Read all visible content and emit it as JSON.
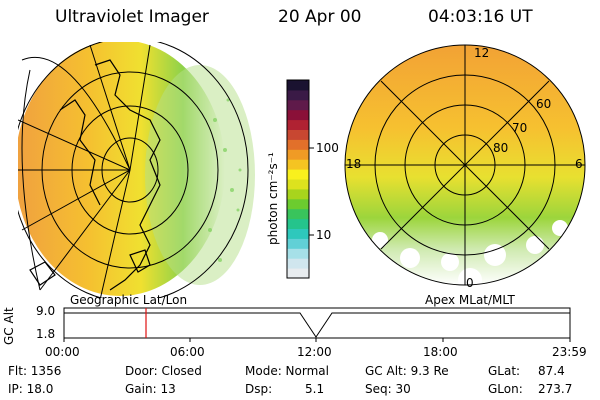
{
  "header": {
    "title": "Ultraviolet Imager",
    "date": "20 Apr 00",
    "time": "04:03:16 UT"
  },
  "colorbar": {
    "label": "photon cm⁻²s⁻¹",
    "ticks": [
      "100",
      "10"
    ],
    "colors": [
      "#e8ecef",
      "#d0e6ee",
      "#a6e0e8",
      "#61d0d6",
      "#2ec8bc",
      "#25c48c",
      "#39c45c",
      "#6ccc2f",
      "#a8d41d",
      "#dde21e",
      "#f9f01d",
      "#f5c422",
      "#f09b25",
      "#e2702a",
      "#c84731",
      "#b02232",
      "#8a1038",
      "#5f1a4a",
      "#3a1a46",
      "#1a1230"
    ]
  },
  "left_panel": {
    "label": "Geographic Lat/Lon"
  },
  "right_panel": {
    "label": "Apex MLat/MLT",
    "mlt_labels": {
      "top": "12",
      "left": "18",
      "right": "6",
      "bottom": "0"
    },
    "mlat_labels": [
      "60",
      "70",
      "80"
    ]
  },
  "altitude_plot": {
    "ylabel": "GC Alt",
    "yticks": [
      "9.0",
      "1.8"
    ],
    "xticks": [
      "00:00",
      "06:00",
      "12:00",
      "18:00",
      "23:59"
    ],
    "marker_color": "#e01010"
  },
  "info": {
    "flt": "Flt: 1356",
    "door": "Door: Closed",
    "mode": "Mode: Normal",
    "gcalt": "GC Alt: 9.3 Re",
    "glat": "GLat:",
    "glat_val": "87.4",
    "ip": "IP: 18.0",
    "gain": "Gain: 13",
    "dsp": "Dsp:",
    "dsp_val": "5.1",
    "seq": "Seq: 30",
    "glon": "GLon:",
    "glon_val": "273.7"
  }
}
